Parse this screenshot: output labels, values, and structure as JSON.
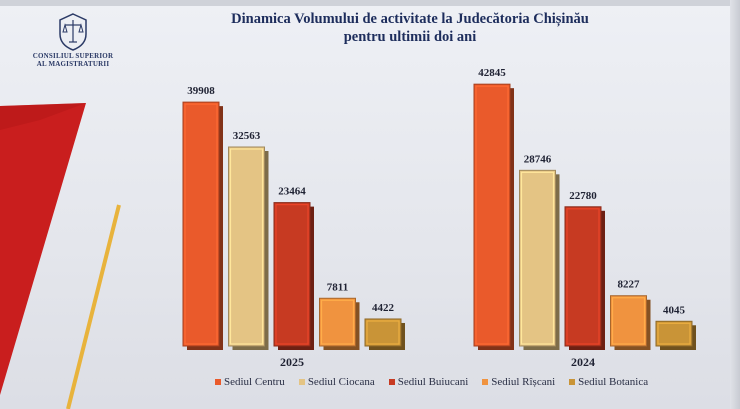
{
  "logo": {
    "line1": "CONSILIUL SUPERIOR",
    "line2": "AL MAGISTRATURII"
  },
  "title": {
    "line1": "Dinamica Volumului de activitate la Judecătoria Chișinău",
    "line2": "pentru ultimii doi ani"
  },
  "colors": {
    "background": "#e6e8ee",
    "decor_red": "#c91e1e",
    "decor_yellow": "#e8b33c"
  },
  "chart_data": {
    "type": "bar",
    "categories": [
      "2025",
      "2024"
    ],
    "series": [
      {
        "name": "Sediul Centru",
        "color": "#ea5a2b",
        "values": [
          39908,
          42845
        ]
      },
      {
        "name": "Sediul Ciocana",
        "color": "#e4c484",
        "values": [
          32563,
          28746
        ]
      },
      {
        "name": "Sediul Buiucani",
        "color": "#c73a22",
        "values": [
          23464,
          22780
        ]
      },
      {
        "name": "Sediul Rîșcani",
        "color": "#f0933f",
        "values": [
          7811,
          8227
        ]
      },
      {
        "name": "Sediul Botanica",
        "color": "#c99437",
        "values": [
          4422,
          4045
        ]
      }
    ],
    "title": "",
    "xlabel": "",
    "ylabel": "",
    "ylim": [
      0,
      45000
    ],
    "grid": false,
    "legend": "bottom"
  }
}
